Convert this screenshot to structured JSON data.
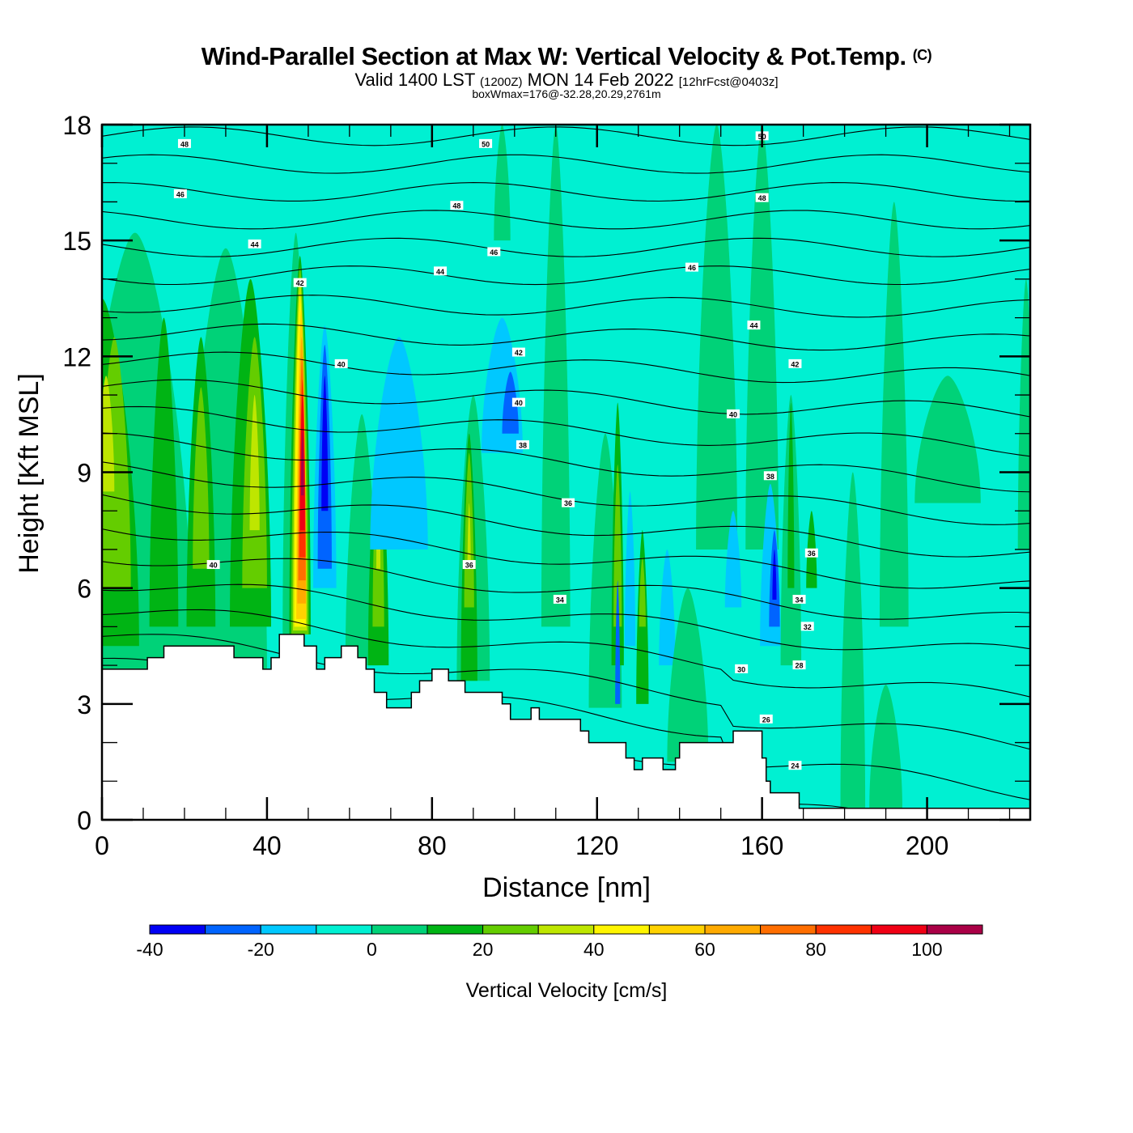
{
  "title": {
    "main": "Wind-Parallel Section at Max W: Vertical Velocity & Pot.Temp.",
    "copyright": "(C)",
    "valid_prefix": "Valid 1400 LST",
    "valid_utc": "(1200Z)",
    "valid_date": "MON 14 Feb 2022",
    "forecast": "[12hrFcst@0403z]",
    "box_wmax": "boxWmax=176@-32.28,20.29,2761m"
  },
  "chart_data": {
    "type": "heatmap",
    "title": "Wind-Parallel Section at Max W: Vertical Velocity & Pot.Temp.",
    "xlabel": "Distance [nm]",
    "ylabel": "Height [Kft MSL]",
    "xlim": [
      0,
      225
    ],
    "ylim": [
      0,
      18
    ],
    "x_ticks": [
      0,
      40,
      80,
      120,
      160,
      200
    ],
    "x_tick_labels": [
      "0",
      "40",
      "80",
      "120",
      "160",
      "200"
    ],
    "x_minor_step": 10,
    "y_ticks": [
      0,
      3,
      6,
      9,
      12,
      15,
      18
    ],
    "y_tick_labels": [
      "0",
      "3",
      "6",
      "9",
      "12",
      "15",
      "18"
    ],
    "y_minor_step": 1,
    "colorbar": {
      "title": "Vertical Velocity [cm/s]",
      "levels": [
        -40,
        -30,
        -20,
        -10,
        0,
        10,
        20,
        30,
        40,
        50,
        60,
        70,
        80,
        90,
        100,
        110
      ],
      "tick_values": [
        -40,
        -20,
        0,
        20,
        40,
        60,
        80,
        100
      ],
      "tick_labels": [
        "-40",
        "-20",
        "0",
        "20",
        "40",
        "60",
        "80",
        "100"
      ],
      "colors": [
        "#0000f5",
        "#0064ff",
        "#00c8ff",
        "#00f0d2",
        "#00d278",
        "#00b414",
        "#64cd00",
        "#bee600",
        "#fff500",
        "#ffd200",
        "#ffaa00",
        "#ff6e00",
        "#ff3200",
        "#f00014",
        "#aa0046"
      ],
      "placement": "bottom"
    },
    "terrain_kft": {
      "x_nm": [
        0,
        11,
        11,
        15,
        15,
        28,
        28,
        32,
        32,
        39,
        39,
        41,
        41,
        43,
        43,
        49,
        49,
        52,
        52,
        54,
        54,
        58,
        58,
        62,
        62,
        64,
        64,
        66,
        66,
        69,
        69,
        75,
        75,
        77,
        77,
        80,
        80,
        84,
        84,
        88,
        88,
        97,
        97,
        99,
        99,
        104,
        104,
        106,
        106,
        116,
        116,
        118,
        118,
        127,
        127,
        129,
        129,
        131,
        131,
        136,
        136,
        139,
        139,
        140,
        140,
        153,
        153,
        160,
        160,
        161,
        161,
        162,
        162,
        168,
        168,
        169,
        169,
        174,
        174,
        185,
        185,
        190,
        190,
        225
      ],
      "height": [
        3.9,
        3.9,
        4.2,
        4.2,
        4.5,
        4.5,
        4.5,
        4.5,
        4.2,
        4.2,
        3.9,
        3.9,
        4.2,
        4.2,
        4.8,
        4.8,
        4.5,
        4.5,
        3.9,
        3.9,
        4.2,
        4.2,
        4.5,
        4.5,
        4.2,
        4.2,
        3.9,
        3.9,
        3.3,
        3.3,
        2.9,
        2.9,
        3.3,
        3.3,
        3.6,
        3.6,
        3.9,
        3.9,
        3.6,
        3.6,
        3.3,
        3.3,
        3.0,
        3.0,
        2.6,
        2.6,
        2.9,
        2.9,
        2.6,
        2.6,
        2.3,
        2.3,
        2.0,
        2.0,
        1.6,
        1.6,
        1.3,
        1.3,
        1.6,
        1.6,
        1.3,
        1.3,
        1.6,
        1.6,
        2.0,
        2.0,
        2.3,
        2.3,
        1.6,
        1.6,
        1.0,
        1.0,
        0.7,
        0.7,
        0.7,
        0.7,
        0.3,
        0.3,
        0.3,
        0.3,
        0.3,
        0.3,
        0.3,
        0.3
      ]
    },
    "max_updraft": {
      "x_nm": 48,
      "height_kft": 9.5,
      "value_cms": 110
    },
    "max_downdraft": {
      "x_nm": 54,
      "height_kft": 11,
      "value_cms": -40
    },
    "theta_contour_labels": [
      {
        "text": "48",
        "x_nm": 20,
        "height_kft": 17.5
      },
      {
        "text": "50",
        "x_nm": 93,
        "height_kft": 17.5
      },
      {
        "text": "50",
        "x_nm": 160,
        "height_kft": 17.7
      },
      {
        "text": "46",
        "x_nm": 19,
        "height_kft": 16.2
      },
      {
        "text": "48",
        "x_nm": 86,
        "height_kft": 15.9
      },
      {
        "text": "48",
        "x_nm": 160,
        "height_kft": 16.1
      },
      {
        "text": "44",
        "x_nm": 37,
        "height_kft": 14.9
      },
      {
        "text": "46",
        "x_nm": 95,
        "height_kft": 14.7
      },
      {
        "text": "44",
        "x_nm": 82,
        "height_kft": 14.2
      },
      {
        "text": "46",
        "x_nm": 143,
        "height_kft": 14.3
      },
      {
        "text": "42",
        "x_nm": 48,
        "height_kft": 13.9
      },
      {
        "text": "44",
        "x_nm": 158,
        "height_kft": 12.8
      },
      {
        "text": "42",
        "x_nm": 101,
        "height_kft": 12.1
      },
      {
        "text": "42",
        "x_nm": 168,
        "height_kft": 11.8
      },
      {
        "text": "40",
        "x_nm": 58,
        "height_kft": 11.8
      },
      {
        "text": "40",
        "x_nm": 101,
        "height_kft": 10.8
      },
      {
        "text": "40",
        "x_nm": 153,
        "height_kft": 10.5
      },
      {
        "text": "38",
        "x_nm": 102,
        "height_kft": 9.7
      },
      {
        "text": "38",
        "x_nm": 162,
        "height_kft": 8.9
      },
      {
        "text": "36",
        "x_nm": 113,
        "height_kft": 8.2
      },
      {
        "text": "40",
        "x_nm": 27,
        "height_kft": 6.6
      },
      {
        "text": "36",
        "x_nm": 89,
        "height_kft": 6.6
      },
      {
        "text": "36",
        "x_nm": 172,
        "height_kft": 6.9
      },
      {
        "text": "34",
        "x_nm": 111,
        "height_kft": 5.7
      },
      {
        "text": "34",
        "x_nm": 169,
        "height_kft": 5.7
      },
      {
        "text": "32",
        "x_nm": 171,
        "height_kft": 5.0
      },
      {
        "text": "30",
        "x_nm": 155,
        "height_kft": 3.9
      },
      {
        "text": "28",
        "x_nm": 169,
        "height_kft": 4.0
      },
      {
        "text": "26",
        "x_nm": 161,
        "height_kft": 2.6
      },
      {
        "text": "24",
        "x_nm": 168,
        "height_kft": 1.4
      }
    ]
  }
}
